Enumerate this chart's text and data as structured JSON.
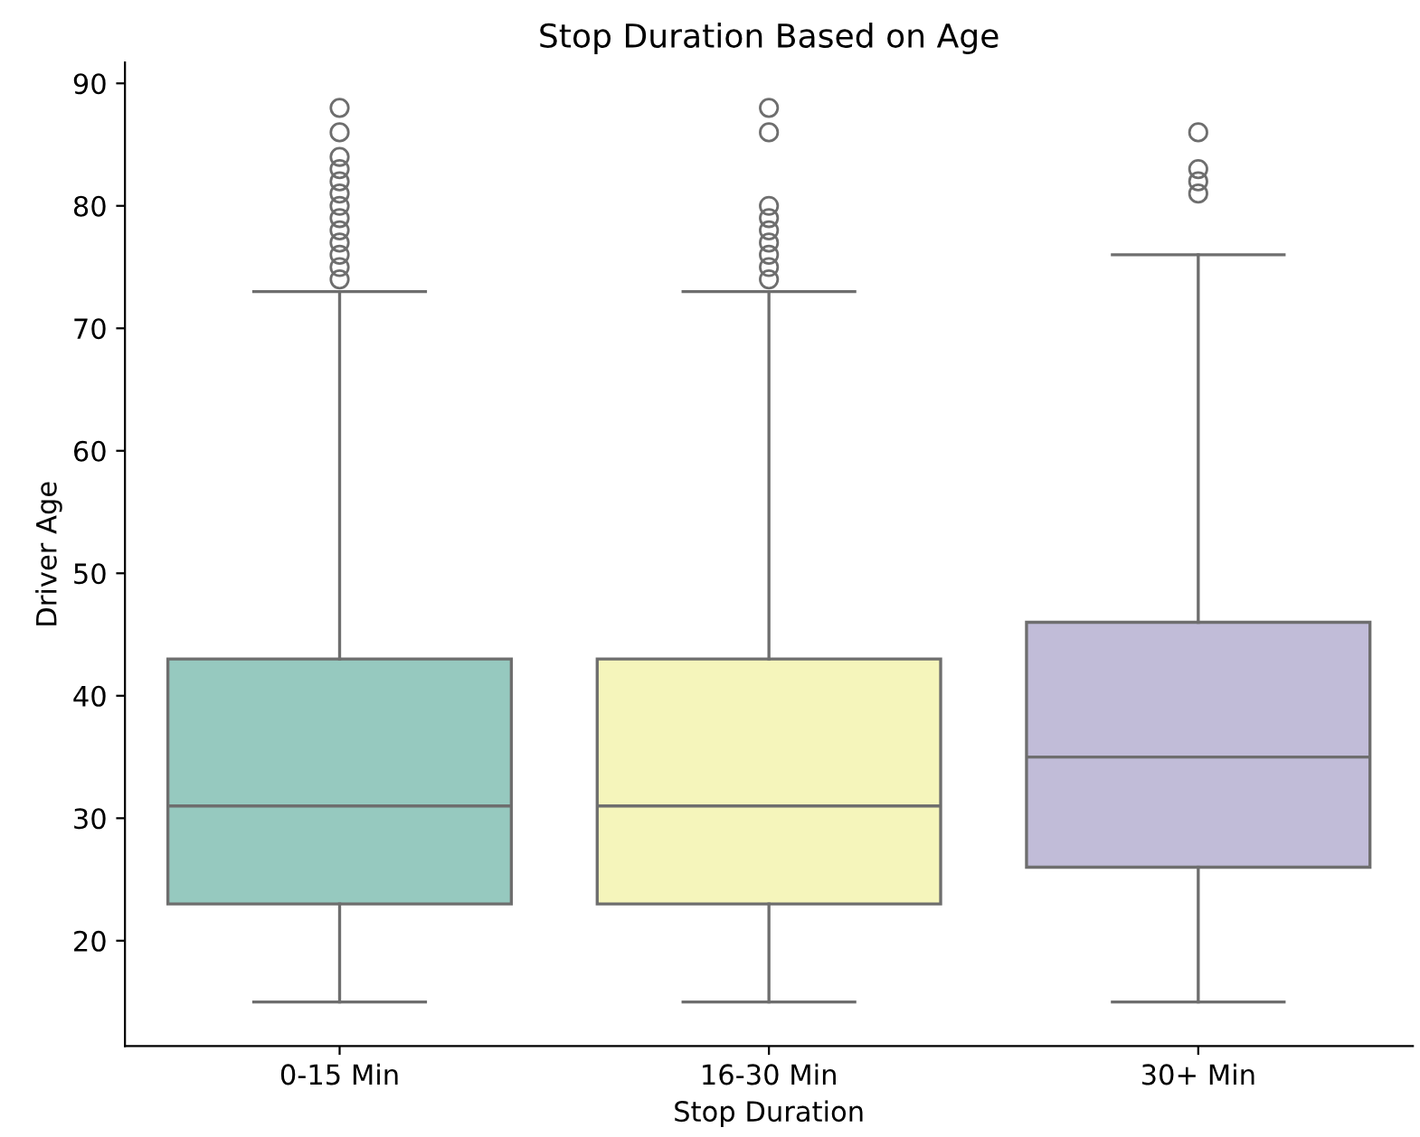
{
  "chart_data": {
    "type": "box",
    "title": "Stop Duration Based on Age",
    "xlabel": "Stop Duration",
    "ylabel": "Driver Age",
    "categories": [
      "0-15 Min",
      "16-30 Min",
      "30+ Min"
    ],
    "colors": [
      "#96c9bf",
      "#f5f5bb",
      "#c1bcd8"
    ],
    "boxes": [
      {
        "low": 15,
        "q1": 23,
        "median": 31,
        "q3": 43,
        "high": 73,
        "outliers": [
          74,
          75,
          76,
          77,
          78,
          79,
          80,
          81,
          82,
          83,
          84,
          86,
          88
        ]
      },
      {
        "low": 15,
        "q1": 23,
        "median": 31,
        "q3": 43,
        "high": 73,
        "outliers": [
          74,
          75,
          76,
          77,
          78,
          79,
          80,
          86,
          88
        ]
      },
      {
        "low": 15,
        "q1": 26,
        "median": 35,
        "q3": 46,
        "high": 76,
        "outliers": [
          81,
          82,
          83,
          86
        ]
      }
    ],
    "ylim": [
      11.4,
      91.7
    ],
    "yticks": [
      20,
      30,
      40,
      50,
      60,
      70,
      80,
      90
    ],
    "grid": false
  }
}
